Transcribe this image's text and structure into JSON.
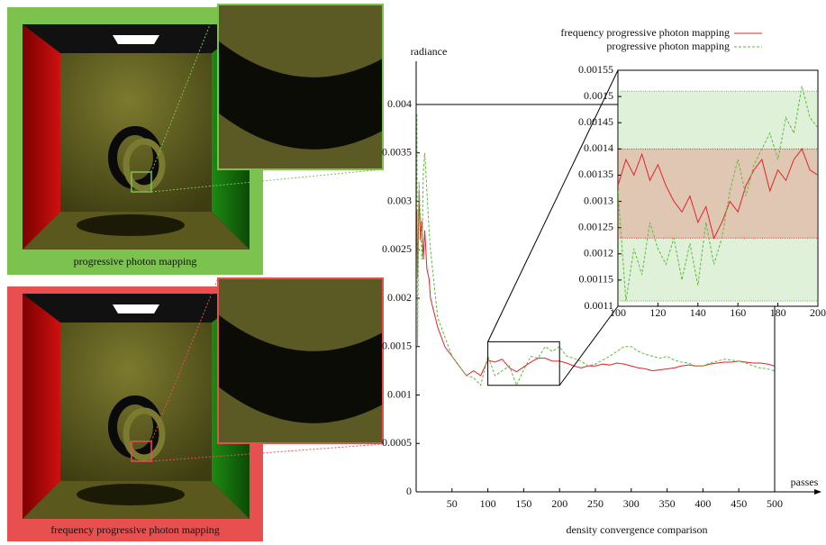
{
  "figure": {
    "panels": [
      {
        "caption": "progressive photon mapping"
      },
      {
        "caption": "frequency progressive photon mapping"
      }
    ]
  },
  "chart_data": [
    {
      "type": "line",
      "title": "density convergence comparison",
      "x_label": "passes",
      "y_label": "radiance",
      "x": [
        1,
        2,
        4,
        6,
        8,
        10,
        12,
        15,
        18,
        20,
        30,
        40,
        50,
        60,
        70,
        80,
        90,
        100,
        110,
        120,
        130,
        140,
        150,
        160,
        170,
        180,
        190,
        200,
        210,
        220,
        230,
        240,
        250,
        260,
        270,
        280,
        290,
        300,
        310,
        320,
        330,
        340,
        350,
        360,
        370,
        380,
        390,
        400,
        410,
        420,
        430,
        440,
        450,
        460,
        470,
        480,
        490,
        500
      ],
      "series": [
        {
          "name": "frequency progressive photon mapping",
          "color": "#e0242a",
          "style": "solid",
          "values": [
            0.0029,
            0.0022,
            0.0031,
            0.0026,
            0.0028,
            0.0024,
            0.0027,
            0.0023,
            0.0022,
            0.002,
            0.0017,
            0.0015,
            0.0014,
            0.0013,
            0.0012,
            0.00125,
            0.0012,
            0.00136,
            0.00134,
            0.00137,
            0.00128,
            0.00124,
            0.00129,
            0.00134,
            0.00138,
            0.00138,
            0.00135,
            0.00135,
            0.00133,
            0.0013,
            0.00128,
            0.0013,
            0.0013,
            0.00132,
            0.00131,
            0.00133,
            0.00132,
            0.0013,
            0.00128,
            0.00127,
            0.00125,
            0.00126,
            0.00127,
            0.00128,
            0.0013,
            0.00131,
            0.0013,
            0.0013,
            0.00132,
            0.00133,
            0.00134,
            0.00134,
            0.00135,
            0.00134,
            0.00133,
            0.00133,
            0.00132,
            0.0013
          ]
        },
        {
          "name": "progressive photon mapping",
          "color": "#5dbb3a",
          "style": "dashed",
          "values": [
            0.0039,
            0.0015,
            0.0032,
            0.0028,
            0.0024,
            0.0033,
            0.0035,
            0.0031,
            0.0027,
            0.0025,
            0.0018,
            0.0016,
            0.0014,
            0.0013,
            0.0012,
            0.00118,
            0.0011,
            0.0014,
            0.0012,
            0.00125,
            0.0013,
            0.0011,
            0.00126,
            0.0014,
            0.00138,
            0.0015,
            0.00145,
            0.0015,
            0.0014,
            0.00138,
            0.00135,
            0.0013,
            0.00132,
            0.00136,
            0.0014,
            0.00145,
            0.0015,
            0.0015,
            0.00145,
            0.00142,
            0.0014,
            0.00138,
            0.0014,
            0.00136,
            0.00134,
            0.00133,
            0.0013,
            0.0013,
            0.00133,
            0.00135,
            0.00137,
            0.00136,
            0.00135,
            0.00133,
            0.0013,
            0.00128,
            0.00127,
            0.00125
          ]
        }
      ],
      "xlim": [
        0,
        500
      ],
      "ylim": [
        0,
        0.0044
      ],
      "xticks": [
        50,
        100,
        150,
        200,
        250,
        300,
        350,
        400,
        450,
        500
      ],
      "yticks": [
        0,
        0.0005,
        0.001,
        0.0015,
        0.002,
        0.0025,
        0.003,
        0.0035,
        0.004
      ]
    },
    {
      "type": "line",
      "x": [
        100,
        104,
        108,
        112,
        116,
        120,
        124,
        128,
        132,
        136,
        140,
        144,
        148,
        152,
        156,
        160,
        164,
        168,
        172,
        176,
        180,
        184,
        188,
        192,
        196,
        200
      ],
      "series": [
        {
          "color": "#e0242a",
          "style": "solid",
          "values": [
            0.00133,
            0.00138,
            0.00135,
            0.00139,
            0.00134,
            0.00137,
            0.00133,
            0.0013,
            0.00128,
            0.00131,
            0.00126,
            0.00129,
            0.00123,
            0.00126,
            0.0013,
            0.00128,
            0.00133,
            0.00136,
            0.00138,
            0.00132,
            0.00136,
            0.00134,
            0.00138,
            0.0014,
            0.00136,
            0.00135
          ]
        },
        {
          "color": "#5dbb3a",
          "style": "dashed",
          "values": [
            0.00132,
            0.00111,
            0.00121,
            0.00116,
            0.00126,
            0.00121,
            0.00118,
            0.00123,
            0.00115,
            0.00122,
            0.00114,
            0.00126,
            0.00118,
            0.00123,
            0.00132,
            0.00138,
            0.00131,
            0.00137,
            0.0014,
            0.00143,
            0.00138,
            0.00146,
            0.00143,
            0.00152,
            0.00146,
            0.00144
          ]
        }
      ],
      "bands": [
        {
          "color": "#5dbb3a",
          "range": [
            0.00111,
            0.00151
          ]
        },
        {
          "color": "#e0242a",
          "range": [
            0.00123,
            0.0014
          ]
        }
      ],
      "xlim": [
        100,
        200
      ],
      "ylim": [
        0.0011,
        0.00155
      ],
      "xticks": [
        100,
        120,
        140,
        160,
        180,
        200
      ],
      "yticks": [
        0.0011,
        0.00115,
        0.0012,
        0.00125,
        0.0013,
        0.00135,
        0.0014,
        0.00145,
        0.0015,
        0.00155
      ]
    }
  ]
}
